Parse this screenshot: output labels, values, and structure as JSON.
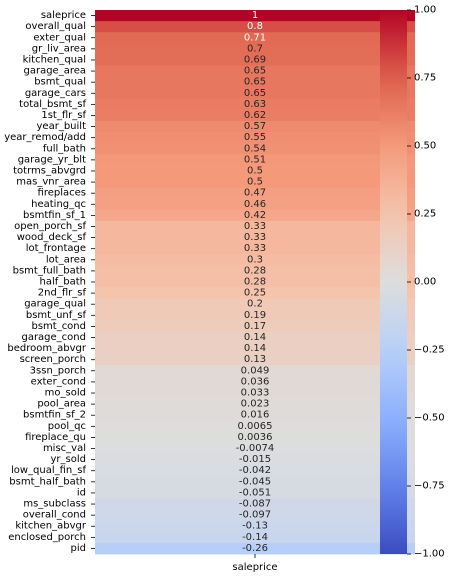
{
  "chart_data": {
    "type": "heatmap",
    "title": "",
    "xlabel": "",
    "ylabel": "",
    "x_categories": [
      "saleprice"
    ],
    "colormap": "coolwarm",
    "vmin": -1.0,
    "vmax": 1.0,
    "colorbar_ticks": [
      1.0,
      0.75,
      0.5,
      0.25,
      0.0,
      -0.25,
      -0.5,
      -0.75,
      -1.0
    ],
    "colorbar_tick_labels": [
      "1.00",
      "0.75",
      "0.50",
      "0.25",
      "0.00",
      "−0.25",
      "−0.50",
      "−0.75",
      "−1.00"
    ],
    "rows": [
      {
        "label": "saleprice",
        "value": 1.0,
        "text": "1"
      },
      {
        "label": "overall_qual",
        "value": 0.8,
        "text": "0.8"
      },
      {
        "label": "exter_qual",
        "value": 0.71,
        "text": "0.71"
      },
      {
        "label": "gr_liv_area",
        "value": 0.7,
        "text": "0.7"
      },
      {
        "label": "kitchen_qual",
        "value": 0.69,
        "text": "0.69"
      },
      {
        "label": "garage_area",
        "value": 0.65,
        "text": "0.65"
      },
      {
        "label": "bsmt_qual",
        "value": 0.65,
        "text": "0.65"
      },
      {
        "label": "garage_cars",
        "value": 0.65,
        "text": "0.65"
      },
      {
        "label": "total_bsmt_sf",
        "value": 0.63,
        "text": "0.63"
      },
      {
        "label": "1st_flr_sf",
        "value": 0.62,
        "text": "0.62"
      },
      {
        "label": "year_built",
        "value": 0.57,
        "text": "0.57"
      },
      {
        "label": "year_remod/add",
        "value": 0.55,
        "text": "0.55"
      },
      {
        "label": "full_bath",
        "value": 0.54,
        "text": "0.54"
      },
      {
        "label": "garage_yr_blt",
        "value": 0.51,
        "text": "0.51"
      },
      {
        "label": "totrms_abvgrd",
        "value": 0.5,
        "text": "0.5"
      },
      {
        "label": "mas_vnr_area",
        "value": 0.5,
        "text": "0.5"
      },
      {
        "label": "fireplaces",
        "value": 0.47,
        "text": "0.47"
      },
      {
        "label": "heating_qc",
        "value": 0.46,
        "text": "0.46"
      },
      {
        "label": "bsmtfin_sf_1",
        "value": 0.42,
        "text": "0.42"
      },
      {
        "label": "open_porch_sf",
        "value": 0.33,
        "text": "0.33"
      },
      {
        "label": "wood_deck_sf",
        "value": 0.33,
        "text": "0.33"
      },
      {
        "label": "lot_frontage",
        "value": 0.33,
        "text": "0.33"
      },
      {
        "label": "lot_area",
        "value": 0.3,
        "text": "0.3"
      },
      {
        "label": "bsmt_full_bath",
        "value": 0.28,
        "text": "0.28"
      },
      {
        "label": "half_bath",
        "value": 0.28,
        "text": "0.28"
      },
      {
        "label": "2nd_flr_sf",
        "value": 0.25,
        "text": "0.25"
      },
      {
        "label": "garage_qual",
        "value": 0.2,
        "text": "0.2"
      },
      {
        "label": "bsmt_unf_sf",
        "value": 0.19,
        "text": "0.19"
      },
      {
        "label": "bsmt_cond",
        "value": 0.17,
        "text": "0.17"
      },
      {
        "label": "garage_cond",
        "value": 0.14,
        "text": "0.14"
      },
      {
        "label": "bedroom_abvgr",
        "value": 0.14,
        "text": "0.14"
      },
      {
        "label": "screen_porch",
        "value": 0.13,
        "text": "0.13"
      },
      {
        "label": "3ssn_porch",
        "value": 0.049,
        "text": "0.049"
      },
      {
        "label": "exter_cond",
        "value": 0.036,
        "text": "0.036"
      },
      {
        "label": "mo_sold",
        "value": 0.033,
        "text": "0.033"
      },
      {
        "label": "pool_area",
        "value": 0.023,
        "text": "0.023"
      },
      {
        "label": "bsmtfin_sf_2",
        "value": 0.016,
        "text": "0.016"
      },
      {
        "label": "pool_qc",
        "value": 0.0065,
        "text": "0.0065"
      },
      {
        "label": "fireplace_qu",
        "value": 0.0036,
        "text": "0.0036"
      },
      {
        "label": "misc_val",
        "value": -0.0074,
        "text": "-0.0074"
      },
      {
        "label": "yr_sold",
        "value": -0.015,
        "text": "-0.015"
      },
      {
        "label": "low_qual_fin_sf",
        "value": -0.042,
        "text": "-0.042"
      },
      {
        "label": "bsmt_half_bath",
        "value": -0.045,
        "text": "-0.045"
      },
      {
        "label": "id",
        "value": -0.051,
        "text": "-0.051"
      },
      {
        "label": "ms_subclass",
        "value": -0.087,
        "text": "-0.087"
      },
      {
        "label": "overall_cond",
        "value": -0.097,
        "text": "-0.097"
      },
      {
        "label": "kitchen_abvgr",
        "value": -0.13,
        "text": "-0.13"
      },
      {
        "label": "enclosed_porch",
        "value": -0.14,
        "text": "-0.14"
      },
      {
        "label": "pid",
        "value": -0.26,
        "text": "-0.26"
      }
    ]
  }
}
